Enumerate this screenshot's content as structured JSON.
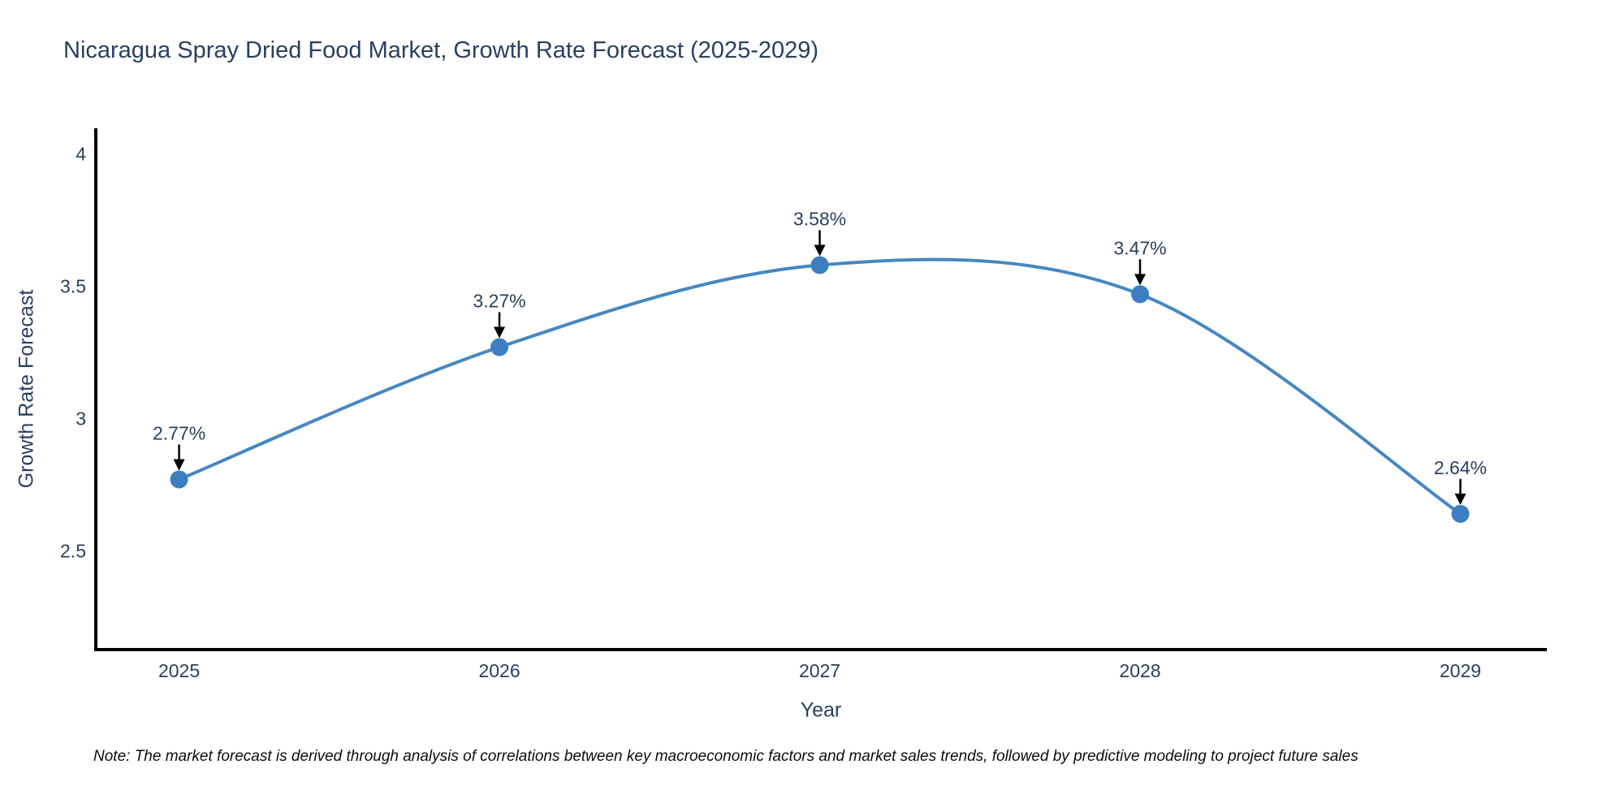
{
  "header": {
    "title": "Nicaragua Spray Dried Food Market, Growth Rate Forecast (2025-2029)"
  },
  "chart_data": {
    "type": "line",
    "title": "Nicaragua Spray Dried Food Market, Growth Rate Forecast (2025-2029)",
    "x": [
      2025,
      2026,
      2027,
      2028,
      2029
    ],
    "series": [
      {
        "name": "Growth Rate Forecast",
        "values": [
          2.77,
          3.27,
          3.58,
          3.47,
          2.64
        ]
      }
    ],
    "point_labels": [
      "2.77%",
      "3.27%",
      "3.58%",
      "3.47%",
      "2.64%"
    ],
    "xlabel": "Year",
    "ylabel": "Growth Rate Forecast",
    "yticks": [
      2.5,
      3,
      3.5,
      4
    ],
    "xticks": [
      2025,
      2026,
      2027,
      2028,
      2029
    ],
    "xlim": [
      2024.74,
      2029.27
    ],
    "ylim": [
      2.127,
      4.097
    ],
    "line_shape": "spline",
    "grid": false,
    "legend": "none",
    "annotations_arrows": true
  },
  "footnote": {
    "text": "Note: The market forecast is derived through analysis of correlations between key macroeconomic factors and market sales trends, followed by predictive modeling to project future sales"
  },
  "colors": {
    "line": "#4687c1",
    "marker": "#3c7ebf",
    "axis_line": "#000000",
    "tick_text": "#2a3f5f",
    "annotation_text": "#2a3f5f",
    "arrow": "#000000",
    "background": "#ffffff"
  }
}
